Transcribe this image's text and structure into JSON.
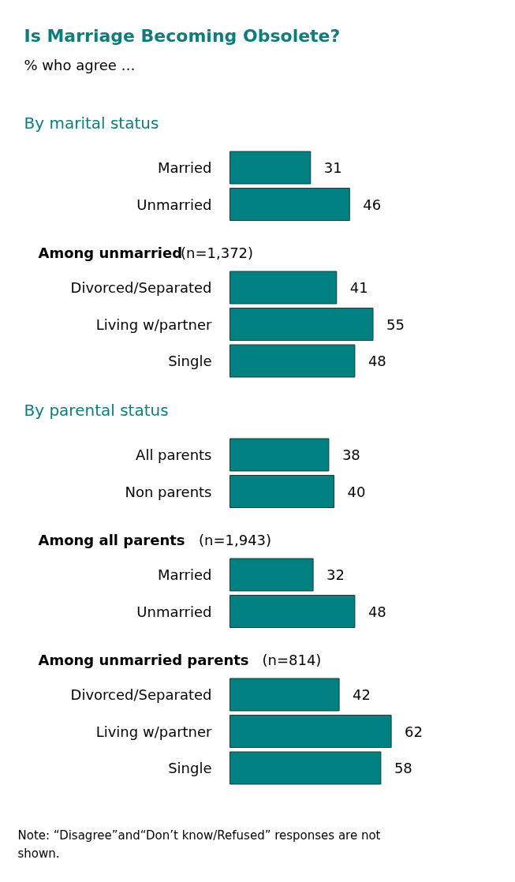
{
  "chart_data": [
    {
      "type": "other",
      "title": "Is Marriage Becoming Obsolete?",
      "subtitle": "% who agree …"
    },
    {
      "type": "bar",
      "orientation": "horizontal",
      "title": "By marital status",
      "categories": [
        "Married",
        "Unmarried"
      ],
      "values": [
        31,
        46
      ],
      "color": "#008080",
      "data_labels": true
    },
    {
      "type": "bar",
      "orientation": "horizontal",
      "title": "Among unmarried",
      "subtitle": "(n=1,372)",
      "categories": [
        "Divorced/Separated",
        "Living w/partner",
        "Single"
      ],
      "values": [
        41,
        55,
        48
      ],
      "color": "#008080",
      "data_labels": true
    },
    {
      "type": "bar",
      "orientation": "horizontal",
      "title": "By parental status",
      "categories": [
        "All parents",
        "Non parents"
      ],
      "values": [
        38,
        40
      ],
      "color": "#008080",
      "data_labels": true
    },
    {
      "type": "bar",
      "orientation": "horizontal",
      "title": "Among all parents",
      "subtitle": "(n=1,943)",
      "categories": [
        "Married",
        "Unmarried"
      ],
      "values": [
        32,
        48
      ],
      "color": "#008080",
      "data_labels": true
    },
    {
      "type": "bar",
      "orientation": "horizontal",
      "title": "Among  unmarried parents",
      "subtitle": "(n=814)",
      "categories": [
        "Divorced/Separated",
        "Living w/partner",
        "Single"
      ],
      "values": [
        42,
        62,
        58
      ],
      "color": "#008080",
      "data_labels": true,
      "annotations": [
        "Note: “Disagree”and“Don’t know/Refused” responses are not shown."
      ]
    }
  ]
}
